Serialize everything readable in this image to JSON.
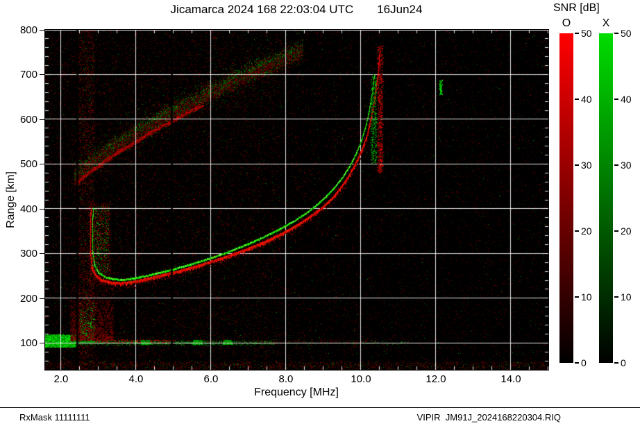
{
  "header": {
    "title": "Jicamarca 2024 168 22:03:04 UTC",
    "date": "16Jun24"
  },
  "colorbar": {
    "title": "SNR [dB]",
    "o_label": "O",
    "x_label": "X",
    "ticks": [
      0,
      10,
      20,
      30,
      40,
      50
    ],
    "range": [
      0,
      50
    ]
  },
  "footer": {
    "rx_mask": "RxMask 11111111",
    "file": "VIPIR  JM91J_2024168220304.RIQ"
  },
  "colors": {
    "o": "#ff0000",
    "x": "#00dd00",
    "background": "#000000",
    "grid": "#ffffff"
  },
  "chart_data": {
    "type": "heatmap",
    "title": "Jicamarca 2024 168 22:03:04 UTC",
    "subtitle": "16Jun24",
    "xlabel": "Frequency [MHz]",
    "ylabel": "Range [km]",
    "xlim": [
      1.575,
      15.0
    ],
    "ylim": [
      40,
      800
    ],
    "x_tick_values": [
      2.0,
      4.0,
      6.0,
      8.0,
      10.0,
      12.0,
      14.0
    ],
    "x_tick_labels": [
      "2.0",
      "4.0",
      "6.0",
      "8.0",
      "10.0",
      "12.0",
      "14.0"
    ],
    "y_ticks": [
      100,
      200,
      300,
      400,
      500,
      600,
      700,
      800
    ],
    "x_minor_step": 0.5,
    "y_minor_step": 20,
    "grid": true,
    "colorbar_title": "SNR [dB]",
    "snr_range_dB": [
      0,
      50
    ],
    "series": [
      {
        "name": "F-layer trace O-mode",
        "mode": "O",
        "color": "#ff0000",
        "points": [
          [
            2.8,
            398
          ],
          [
            2.78,
            345
          ],
          [
            2.79,
            300
          ],
          [
            2.83,
            268
          ],
          [
            2.93,
            250
          ],
          [
            3.08,
            240
          ],
          [
            3.3,
            234
          ],
          [
            3.6,
            232
          ],
          [
            3.9,
            235
          ],
          [
            4.2,
            240
          ],
          [
            4.5,
            246
          ],
          [
            4.8,
            252
          ],
          [
            5.1,
            258
          ],
          [
            5.4,
            265
          ],
          [
            5.7,
            272
          ],
          [
            6.0,
            280
          ],
          [
            6.3,
            288
          ],
          [
            6.6,
            297
          ],
          [
            6.9,
            306
          ],
          [
            7.2,
            316
          ],
          [
            7.5,
            327
          ],
          [
            7.8,
            339
          ],
          [
            8.1,
            352
          ],
          [
            8.4,
            367
          ],
          [
            8.7,
            384
          ],
          [
            9.0,
            403
          ],
          [
            9.25,
            423
          ],
          [
            9.45,
            444
          ],
          [
            9.65,
            468
          ],
          [
            9.85,
            497
          ],
          [
            10.0,
            525
          ],
          [
            10.15,
            558
          ],
          [
            10.25,
            592
          ],
          [
            10.35,
            636
          ],
          [
            10.43,
            682
          ],
          [
            10.49,
            728
          ],
          [
            10.52,
            762
          ]
        ]
      },
      {
        "name": "F-layer trace X-mode",
        "mode": "X",
        "color": "#00dd00",
        "points": [
          [
            2.86,
            400
          ],
          [
            2.84,
            352
          ],
          [
            2.85,
            305
          ],
          [
            2.9,
            274
          ],
          [
            3.0,
            257
          ],
          [
            3.18,
            247
          ],
          [
            3.42,
            242
          ],
          [
            3.7,
            241
          ],
          [
            4.0,
            245
          ],
          [
            4.3,
            250
          ],
          [
            4.6,
            256
          ],
          [
            4.9,
            262
          ],
          [
            5.2,
            269
          ],
          [
            5.5,
            276
          ],
          [
            5.8,
            284
          ],
          [
            6.1,
            292
          ],
          [
            6.4,
            301
          ],
          [
            6.7,
            311
          ],
          [
            7.0,
            321
          ],
          [
            7.3,
            332
          ],
          [
            7.6,
            344
          ],
          [
            7.9,
            357
          ],
          [
            8.2,
            371
          ],
          [
            8.5,
            387
          ],
          [
            8.8,
            406
          ],
          [
            9.05,
            425
          ],
          [
            9.3,
            447
          ],
          [
            9.5,
            468
          ],
          [
            9.7,
            494
          ],
          [
            9.85,
            518
          ],
          [
            10.0,
            548
          ],
          [
            10.12,
            580
          ],
          [
            10.22,
            616
          ],
          [
            10.3,
            656
          ],
          [
            10.36,
            698
          ]
        ]
      },
      {
        "name": "second-hop diffuse echo",
        "mode": "mixed",
        "color": "#991100",
        "points": [
          [
            2.35,
            470
          ],
          [
            2.7,
            495
          ],
          [
            3.1,
            520
          ],
          [
            3.5,
            543
          ],
          [
            3.9,
            563
          ],
          [
            4.3,
            583
          ],
          [
            4.7,
            602
          ],
          [
            5.1,
            620
          ],
          [
            5.5,
            638
          ],
          [
            5.9,
            655
          ],
          [
            6.3,
            672
          ],
          [
            6.7,
            688
          ],
          [
            7.1,
            704
          ],
          [
            7.5,
            719
          ],
          [
            7.9,
            734
          ],
          [
            8.2,
            745
          ],
          [
            8.45,
            755
          ]
        ]
      },
      {
        "name": "E-region echo",
        "mode": "X",
        "color": "#00cc00",
        "points": [
          [
            1.6,
            103
          ],
          [
            1.9,
            103
          ],
          [
            2.2,
            102
          ],
          [
            2.36,
            101
          ]
        ]
      }
    ],
    "features": {
      "e_region_blob": {
        "f": [
          1.575,
          2.38
        ],
        "km": [
          90,
          118
        ]
      },
      "e_region_spur": {
        "f": [
          2.5,
          2.9
        ],
        "km": [
          100,
          200
        ]
      },
      "e_region_line": {
        "f": [
          2.4,
          7.7
        ],
        "km": [
          95,
          105
        ]
      },
      "spread_foot": {
        "f": [
          2.76,
          3.31
        ],
        "km": [
          230,
          415
        ]
      },
      "o_asymptote": {
        "f": [
          10.44,
          10.58
        ],
        "km": [
          480,
          765
        ]
      },
      "x_asymptote": {
        "f": [
          10.27,
          10.42
        ],
        "km": [
          500,
          700
        ]
      },
      "rfi_notches_f": [
        2.44,
        4.95
      ],
      "interference_column_f": [
        2.45,
        2.9
      ],
      "isolated_green_dash": {
        "f": 12.1,
        "km": [
          656,
          688
        ]
      },
      "noise_rows_km": [
        103,
        48
      ]
    }
  }
}
